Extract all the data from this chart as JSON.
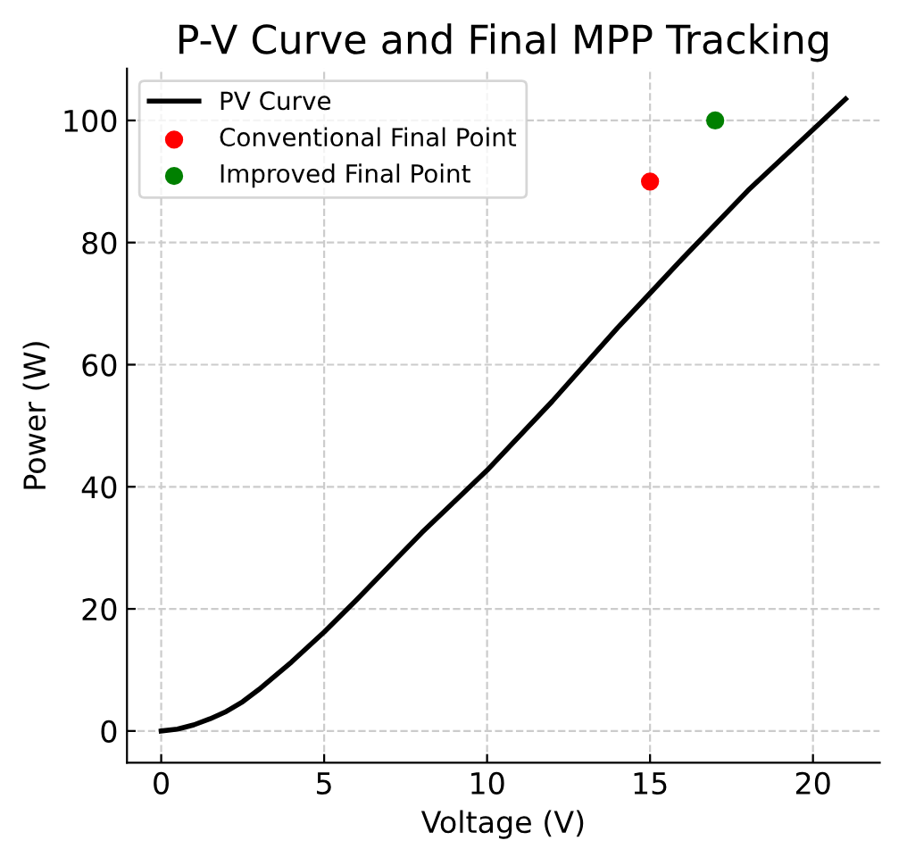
{
  "chart_data": {
    "type": "line",
    "title": "P-V Curve and Final MPP Tracking",
    "xlabel": "Voltage (V)",
    "ylabel": "Power (W)",
    "series": [
      {
        "name": "PV Curve",
        "color": "#000000",
        "x": [
          0,
          0.5,
          1,
          1.5,
          2,
          2.5,
          3,
          4,
          5,
          6,
          7,
          8,
          9,
          10,
          12,
          14,
          15,
          16,
          18,
          20,
          21
        ],
        "values": [
          0,
          0.3,
          1.0,
          2.0,
          3.2,
          4.8,
          6.8,
          11.3,
          16.2,
          21.5,
          27,
          32.5,
          37.6,
          42.7,
          54,
          66,
          71.7,
          77.4,
          88.5,
          98.5,
          103.5
        ]
      },
      {
        "name": "Conventional Final Point",
        "type": "scatter",
        "color": "#ff0000",
        "x": [
          15
        ],
        "values": [
          90
        ]
      },
      {
        "name": "Improved Final Point",
        "type": "scatter",
        "color": "#008000",
        "x": [
          17
        ],
        "values": [
          100
        ]
      }
    ],
    "xlim": [
      -1.05,
      22.05
    ],
    "ylim": [
      -5.2,
      108.5
    ],
    "xticks": [
      0,
      5,
      10,
      15,
      20
    ],
    "yticks": [
      0,
      20,
      40,
      60,
      80,
      100
    ],
    "grid": true,
    "legend": "top left"
  }
}
